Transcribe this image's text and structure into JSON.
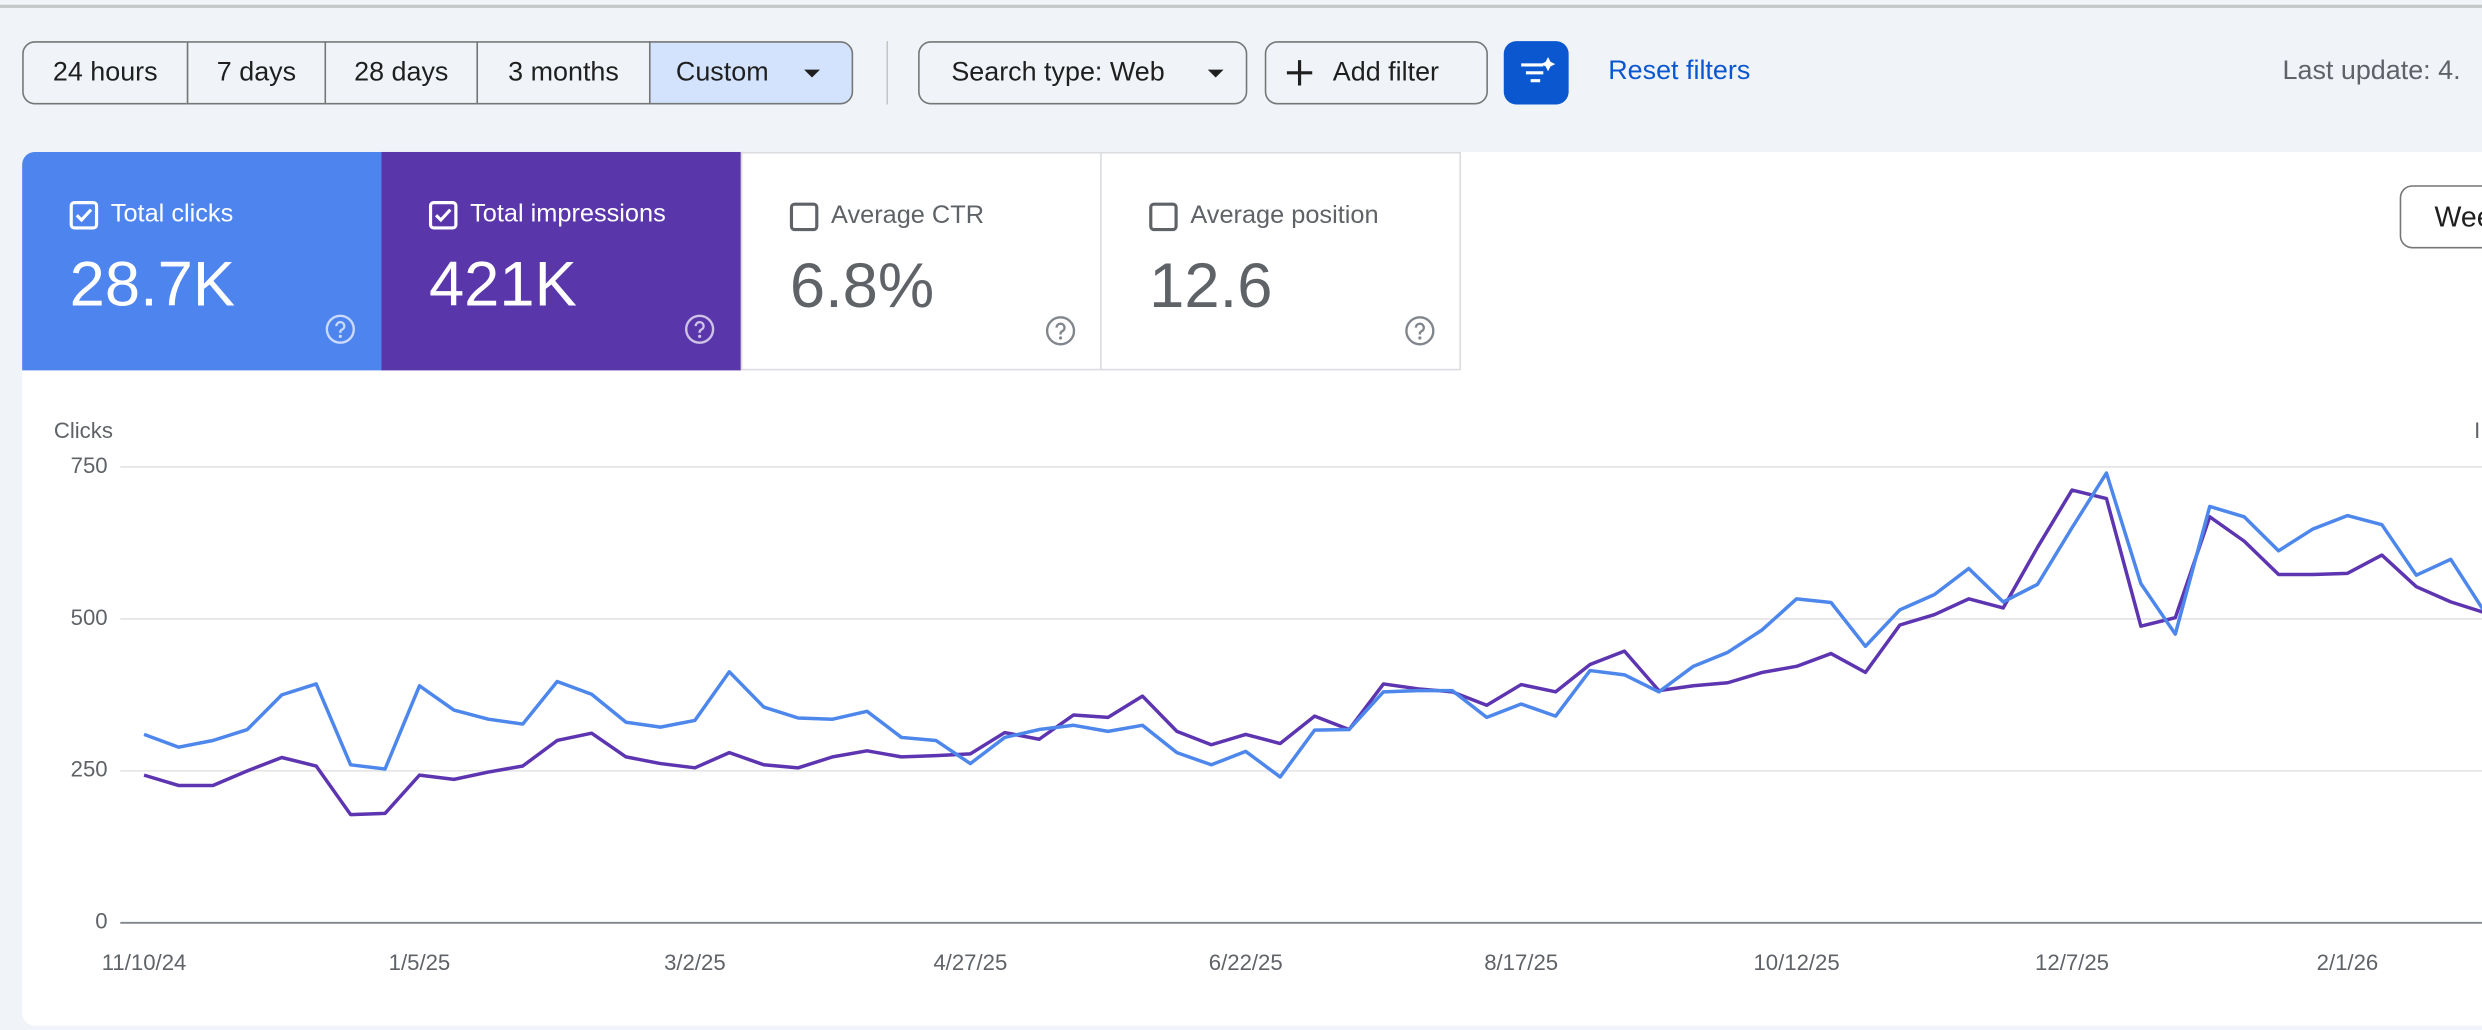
{
  "toolbar": {
    "ranges": [
      "24 hours",
      "7 days",
      "28 days",
      "3 months",
      "Custom"
    ],
    "search_type": "Search type: Web",
    "add_filter": "Add filter",
    "reset": "Reset filters",
    "last_update": "Last update: 4."
  },
  "metrics": [
    {
      "label": "Total clicks",
      "value": "28.7K"
    },
    {
      "label": "Total impressions",
      "value": "421K"
    },
    {
      "label": "Average CTR",
      "value": "6.8%"
    },
    {
      "label": "Average position",
      "value": "12.6"
    }
  ],
  "view_button": "Wee",
  "chart_data": {
    "type": "line",
    "y_label": "Clicks",
    "y2_label": "I",
    "categories": [
      "11/10/24",
      null,
      null,
      null,
      null,
      null,
      null,
      null,
      "1/5/25",
      null,
      null,
      null,
      null,
      null,
      null,
      null,
      "3/2/25",
      null,
      null,
      null,
      null,
      null,
      null,
      null,
      "4/27/25",
      null,
      null,
      null,
      null,
      null,
      null,
      null,
      "6/22/25",
      null,
      null,
      null,
      null,
      null,
      null,
      null,
      "8/17/25",
      null,
      null,
      null,
      null,
      null,
      null,
      null,
      "10/12/25",
      null,
      null,
      null,
      null,
      null,
      null,
      null,
      "12/7/25",
      null,
      null,
      null,
      null,
      null,
      null,
      null,
      "2/1/26",
      null,
      null,
      null,
      null
    ],
    "series": [
      {
        "color": "#4d87ec",
        "values": [
          310,
          289,
          300,
          318,
          375,
          393,
          260,
          253,
          390,
          350,
          335,
          327,
          397,
          376,
          330,
          322,
          333,
          413,
          355,
          337,
          335,
          348,
          305,
          300,
          262,
          305,
          318,
          325,
          315,
          325,
          280,
          260,
          282,
          240,
          317,
          318,
          380,
          382,
          382,
          338,
          360,
          340,
          415,
          408,
          380,
          422,
          445,
          482,
          533,
          527,
          455,
          515,
          540,
          583,
          528,
          557,
          650,
          740,
          558,
          475,
          685,
          668,
          612,
          648,
          670,
          655,
          572,
          598,
          510
        ]
      },
      {
        "color": "#5e35b1",
        "axis": "y2",
        "values": [
          3888,
          3616,
          3616,
          4000,
          4352,
          4128,
          2848,
          2880,
          3888,
          3776,
          3968,
          4128,
          4800,
          4992,
          4368,
          4192,
          4080,
          4480,
          4160,
          4080,
          4368,
          4528,
          4368,
          4400,
          4448,
          5008,
          4832,
          5472,
          5408,
          5968,
          5040,
          4688,
          4960,
          4720,
          5440,
          5088,
          6288,
          6160,
          6080,
          5728,
          6272,
          6080,
          6800,
          7152,
          6112,
          6240,
          6320,
          6592,
          6752,
          7088,
          6592,
          7840,
          8112,
          8528,
          8288,
          9888,
          11392,
          11168,
          7808,
          8032,
          10688,
          10048,
          9168,
          9168,
          9200,
          9680,
          8848,
          8448,
          8160
        ]
      }
    ],
    "ylim": [
      0,
      750
    ],
    "yticks": [
      0,
      250,
      500,
      750
    ],
    "y2lim": [
      0,
      12000
    ],
    "grid": true
  }
}
